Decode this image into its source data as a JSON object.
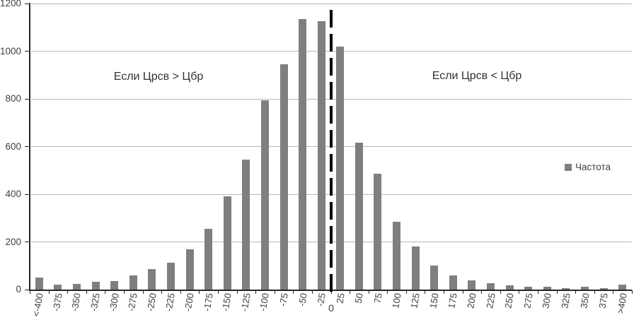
{
  "chart_data": {
    "type": "bar",
    "title": "",
    "categories": [
      "<-400",
      "-375",
      "-350",
      "-325",
      "-300",
      "-275",
      "-250",
      "-225",
      "-200",
      "-175",
      "-150",
      "-125",
      "-100",
      "-75",
      "-50",
      "-25",
      "25",
      "50",
      "75",
      "100",
      "125",
      "150",
      "175",
      "200",
      "225",
      "250",
      "275",
      "300",
      "325",
      "350",
      "375",
      ">400"
    ],
    "values": [
      50,
      20,
      25,
      32,
      37,
      60,
      85,
      112,
      170,
      255,
      390,
      545,
      795,
      945,
      1135,
      1125,
      1020,
      615,
      485,
      285,
      180,
      100,
      60,
      40,
      26,
      17,
      13,
      13,
      5,
      12,
      7,
      20
    ],
    "xlabel": "",
    "ylabel": "",
    "ylim": [
      0,
      1200
    ],
    "yticks": [
      0,
      200,
      400,
      600,
      800,
      1000,
      1200
    ],
    "grid": "horizontal",
    "legend": {
      "label": "Частота",
      "position": "right"
    },
    "annotations": [
      {
        "text": "Если Црсв > Цбр",
        "side": "left"
      },
      {
        "text": "Если Црсв < Цбр",
        "side": "right"
      }
    ],
    "reference_line": {
      "style": "dashed",
      "label": "0",
      "x_between": [
        "-25",
        "25"
      ]
    },
    "colors": {
      "bar": "#7f7f7f",
      "gridline": "#b8b8b8",
      "axis": "#262626",
      "text": "#3f3f3f",
      "reference_line": "#000000"
    }
  }
}
